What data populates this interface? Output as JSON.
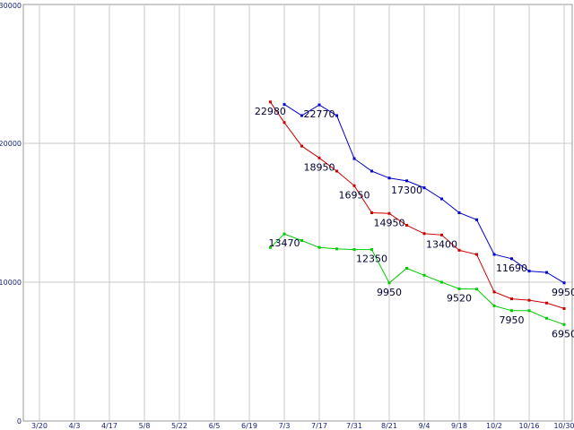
{
  "chart_data": {
    "type": "line",
    "grid": true,
    "ylim": [
      0,
      30000
    ],
    "yticks": [
      {
        "label": "0",
        "value": 0
      },
      {
        "label": "10000",
        "value": 10000
      },
      {
        "label": "20000",
        "value": 20000
      },
      {
        "label": "30000",
        "value": 30000
      }
    ],
    "xticks": [
      "3/20",
      "4/3",
      "4/17",
      "5/8",
      "5/22",
      "6/5",
      "6/19",
      "7/3",
      "7/17",
      "7/31",
      "8/21",
      "9/4",
      "9/18",
      "10/2",
      "10/16",
      "10/30"
    ],
    "series": [
      {
        "color": "#0000cc",
        "points": [
          [
            7.0,
            22800
          ],
          [
            7.5,
            22000
          ],
          [
            8.0,
            22770
          ],
          [
            8.5,
            22000
          ],
          [
            9.0,
            18900
          ],
          [
            9.5,
            18000
          ],
          [
            10.0,
            17500
          ],
          [
            10.5,
            17300
          ],
          [
            11.0,
            16800
          ],
          [
            11.5,
            16000
          ],
          [
            12.0,
            15000
          ],
          [
            12.5,
            14500
          ],
          [
            13.0,
            12000
          ],
          [
            13.5,
            11690
          ],
          [
            14.0,
            10800
          ],
          [
            14.5,
            10700
          ],
          [
            15.0,
            9950
          ]
        ]
      },
      {
        "color": "#cc0000",
        "points": [
          [
            6.6,
            22980
          ],
          [
            7.0,
            21500
          ],
          [
            7.5,
            19800
          ],
          [
            8.0,
            18950
          ],
          [
            8.5,
            18000
          ],
          [
            9.0,
            16950
          ],
          [
            9.5,
            15000
          ],
          [
            10.0,
            14950
          ],
          [
            10.5,
            14100
          ],
          [
            11.0,
            13500
          ],
          [
            11.5,
            13400
          ],
          [
            12.0,
            12300
          ],
          [
            12.5,
            12000
          ],
          [
            13.0,
            9300
          ],
          [
            13.5,
            8800
          ],
          [
            14.0,
            8700
          ],
          [
            14.5,
            8500
          ],
          [
            15.0,
            8100
          ]
        ]
      },
      {
        "color": "#00cc00",
        "points": [
          [
            6.6,
            12500
          ],
          [
            7.0,
            13470
          ],
          [
            7.5,
            13000
          ],
          [
            8.0,
            12500
          ],
          [
            8.5,
            12400
          ],
          [
            9.0,
            12350
          ],
          [
            9.5,
            12350
          ],
          [
            10.0,
            9950
          ],
          [
            10.5,
            11000
          ],
          [
            11.0,
            10500
          ],
          [
            11.5,
            10000
          ],
          [
            12.0,
            9520
          ],
          [
            12.5,
            9500
          ],
          [
            13.0,
            8300
          ],
          [
            13.5,
            7950
          ],
          [
            14.0,
            7950
          ],
          [
            14.5,
            7400
          ],
          [
            15.0,
            6950
          ]
        ]
      }
    ],
    "annotations": [
      {
        "text": "22980",
        "x": 6.6,
        "y": 22980
      },
      {
        "text": "22770",
        "x": 8.0,
        "y": 22770
      },
      {
        "text": "18950",
        "x": 8.0,
        "y": 18950
      },
      {
        "text": "16950",
        "x": 9.0,
        "y": 16950
      },
      {
        "text": "14950",
        "x": 10.0,
        "y": 14950
      },
      {
        "text": "17300",
        "x": 10.5,
        "y": 17300
      },
      {
        "text": "13400",
        "x": 11.5,
        "y": 13400
      },
      {
        "text": "11690",
        "x": 13.5,
        "y": 11690
      },
      {
        "text": "9950",
        "x": 15.0,
        "y": 9950
      },
      {
        "text": "13470",
        "x": 7.0,
        "y": 13470
      },
      {
        "text": "12350",
        "x": 9.5,
        "y": 12350
      },
      {
        "text": "9950",
        "x": 10.0,
        "y": 9950
      },
      {
        "text": "9520",
        "x": 12.0,
        "y": 9520
      },
      {
        "text": "7950",
        "x": 13.5,
        "y": 7950
      },
      {
        "text": "6950",
        "x": 15.0,
        "y": 6950
      }
    ]
  }
}
